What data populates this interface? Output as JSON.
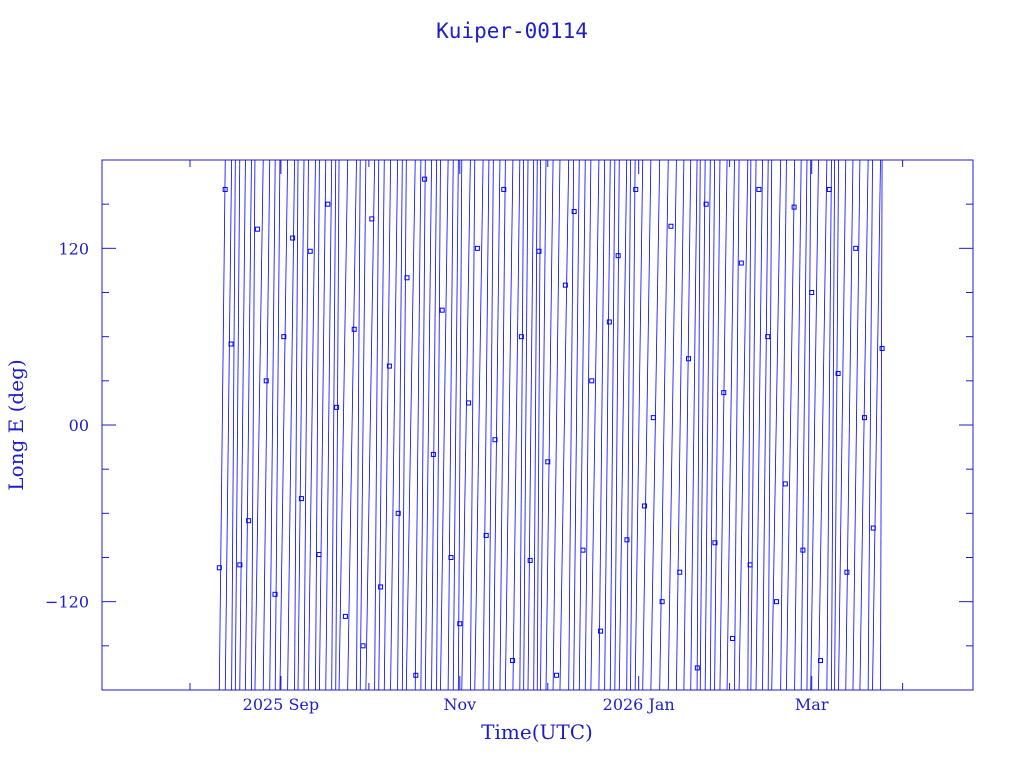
{
  "chart_data": {
    "type": "scatter",
    "title": "Kuiper-00114",
    "xlabel": "Time(UTC)",
    "ylabel": "Long E (deg)",
    "xlim": [
      "2025-07-02",
      "2026-04-25"
    ],
    "ylim": [
      -180,
      180
    ],
    "x_ticks": [
      {
        "label": "2025 Sep",
        "date": "2025-09-01"
      },
      {
        "label": "Nov",
        "date": "2025-11-01"
      },
      {
        "label": "2026 Jan",
        "date": "2026-01-01"
      },
      {
        "label": "Mar",
        "date": "2026-03-01"
      }
    ],
    "y_ticks": [
      {
        "label": "120",
        "value": 120
      },
      {
        "label": "00",
        "value": 0
      },
      {
        "label": "−120",
        "value": -120
      }
    ],
    "grid": false,
    "marker": "square",
    "colors": {
      "series": "#0000ff",
      "axes": "#1c1ccc"
    },
    "series": [
      {
        "data_start": "2025-08-11",
        "data_end": "2026-03-25",
        "x": [
          "2025-08-11",
          "2025-08-13",
          "2025-08-15",
          "2025-08-18",
          "2025-08-21",
          "2025-08-24",
          "2025-08-27",
          "2025-08-30",
          "2025-09-02",
          "2025-09-05",
          "2025-09-08",
          "2025-09-11",
          "2025-09-14",
          "2025-09-17",
          "2025-09-20",
          "2025-09-23",
          "2025-09-26",
          "2025-09-29",
          "2025-10-02",
          "2025-10-05",
          "2025-10-08",
          "2025-10-11",
          "2025-10-14",
          "2025-10-17",
          "2025-10-20",
          "2025-10-23",
          "2025-10-26",
          "2025-10-29",
          "2025-11-01",
          "2025-11-04",
          "2025-11-07",
          "2025-11-10",
          "2025-11-13",
          "2025-11-16",
          "2025-11-19",
          "2025-11-22",
          "2025-11-25",
          "2025-11-28",
          "2025-12-01",
          "2025-12-04",
          "2025-12-07",
          "2025-12-10",
          "2025-12-13",
          "2025-12-16",
          "2025-12-19",
          "2025-12-22",
          "2025-12-25",
          "2025-12-28",
          "2025-12-31",
          "2026-01-03",
          "2026-01-06",
          "2026-01-09",
          "2026-01-12",
          "2026-01-15",
          "2026-01-18",
          "2026-01-21",
          "2026-01-24",
          "2026-01-27",
          "2026-01-30",
          "2026-02-02",
          "2026-02-05",
          "2026-02-08",
          "2026-02-11",
          "2026-02-14",
          "2026-02-17",
          "2026-02-20",
          "2026-02-23",
          "2026-02-26",
          "2026-03-01",
          "2026-03-04",
          "2026-03-07",
          "2026-03-10",
          "2026-03-13",
          "2026-03-16",
          "2026-03-19",
          "2026-03-22",
          "2026-03-25"
        ],
        "y": [
          -97,
          160,
          55,
          -95,
          -65,
          133,
          30,
          -115,
          60,
          127,
          -50,
          118,
          -88,
          150,
          12,
          -130,
          65,
          -150,
          140,
          -110,
          40,
          -60,
          100,
          -170,
          167,
          -20,
          78,
          -90,
          -135,
          15,
          120,
          -75,
          -10,
          160,
          -160,
          60,
          -92,
          118,
          -25,
          -170,
          95,
          145,
          -85,
          30,
          -140,
          70,
          115,
          -78,
          160,
          -55,
          5,
          -120,
          135,
          -100,
          45,
          -165,
          150,
          -80,
          22,
          -145,
          110,
          -95,
          160,
          60,
          -120,
          -40,
          148,
          -85,
          90,
          -160,
          160,
          35,
          -100,
          120,
          5,
          -70,
          52
        ]
      }
    ]
  }
}
